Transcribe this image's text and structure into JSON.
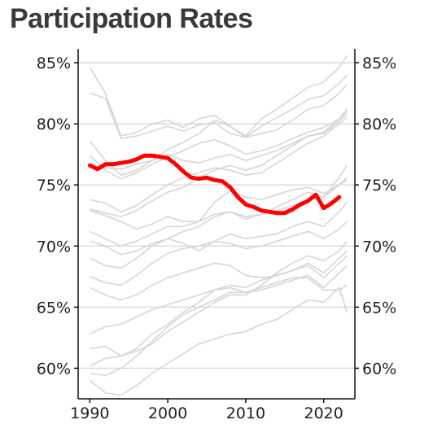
{
  "chart_data": {
    "type": "line",
    "title": "Participation Rates",
    "xlabel": "",
    "ylabel": "",
    "xlim": [
      1988.5,
      2024
    ],
    "ylim": [
      57.5,
      86
    ],
    "x_ticks": [
      "1990",
      "2000",
      "2010",
      "2020"
    ],
    "y_ticks": [
      "60%",
      "65%",
      "70%",
      "75%",
      "80%",
      "85%"
    ],
    "y_tick_values": [
      60,
      65,
      70,
      75,
      80,
      85
    ],
    "x_tick_values": [
      1990,
      2000,
      2010,
      2020
    ],
    "grid": "horizontal",
    "highlight_color": "#ff0000",
    "background_color": "#d6d6d6",
    "highlight": {
      "x": [
        1990,
        1991,
        1992,
        1993,
        1994,
        1995,
        1996,
        1997,
        1998,
        1999,
        2000,
        2001,
        2002,
        2003,
        2004,
        2005,
        2006,
        2007,
        2008,
        2009,
        2010,
        2011,
        2012,
        2013,
        2014,
        2015,
        2016,
        2017,
        2018,
        2019,
        2020,
        2021,
        2022
      ],
      "values": [
        76.6,
        76.3,
        76.7,
        76.7,
        76.8,
        76.9,
        77.1,
        77.4,
        77.4,
        77.3,
        77.2,
        76.7,
        76.1,
        75.6,
        75.5,
        75.6,
        75.4,
        75.3,
        74.8,
        74.0,
        73.4,
        73.2,
        72.9,
        72.8,
        72.7,
        72.7,
        73.0,
        73.4,
        73.7,
        74.2,
        73.1,
        73.5,
        74.0
      ]
    },
    "background_series": [
      {
        "x": [
          1990,
          1992,
          1994,
          1996,
          1998,
          2000,
          2002,
          2004,
          2006,
          2008,
          2010,
          2012,
          2014,
          2016,
          2018,
          2020,
          2022,
          2023
        ],
        "values": [
          84.6,
          82.5,
          79.0,
          79.3,
          80.0,
          80.3,
          79.7,
          80.4,
          80.7,
          79.8,
          79.0,
          80.4,
          81.2,
          82.1,
          83.0,
          83.4,
          84.6,
          85.6
        ]
      },
      {
        "x": [
          1990,
          1992,
          1994,
          1996,
          1998,
          2000,
          2002,
          2004,
          2006,
          2008,
          2010,
          2012,
          2014,
          2016,
          2018,
          2020,
          2022,
          2023
        ],
        "values": [
          82.5,
          82.1,
          78.8,
          79.0,
          79.4,
          79.8,
          79.4,
          79.9,
          80.1,
          79.2,
          78.9,
          79.8,
          80.5,
          81.2,
          82.0,
          82.3,
          83.3,
          84.0
        ]
      },
      {
        "x": [
          1990,
          1992,
          1994,
          1996,
          1998,
          2000,
          2002,
          2004,
          2006,
          2008,
          2010,
          2012,
          2014,
          2016,
          2018,
          2020,
          2022,
          2023
        ],
        "values": [
          78.6,
          77.0,
          75.8,
          76.2,
          77.0,
          77.9,
          78.5,
          79.2,
          80.3,
          79.8,
          78.9,
          79.2,
          79.5,
          80.3,
          81.2,
          81.5,
          82.5,
          83.2
        ]
      },
      {
        "x": [
          1990,
          1992,
          1994,
          1996,
          1998,
          2000,
          2002,
          2004,
          2006,
          2008,
          2010,
          2012,
          2014,
          2016,
          2018,
          2020,
          2022,
          2023
        ],
        "values": [
          77.4,
          76.2,
          75.5,
          76.0,
          76.7,
          77.3,
          77.8,
          78.4,
          78.7,
          78.2,
          77.5,
          77.8,
          78.2,
          78.8,
          79.3,
          79.7,
          80.4,
          81.0
        ]
      },
      {
        "x": [
          1990,
          1992,
          1994,
          1996,
          1998,
          2000,
          2002,
          2004,
          2006,
          2008,
          2010,
          2012,
          2014,
          2016,
          2018,
          2020,
          2022,
          2023
        ],
        "values": [
          76.6,
          76.4,
          76.3,
          76.7,
          77.0,
          77.5,
          77.0,
          76.8,
          77.2,
          77.5,
          77.0,
          77.4,
          77.8,
          78.4,
          79.0,
          79.2,
          80.2,
          80.8
        ]
      },
      {
        "x": [
          1990,
          1992,
          1994,
          1996,
          1998,
          2000,
          2002,
          2004,
          2006,
          2008,
          2010,
          2012,
          2014,
          2016,
          2018,
          2020,
          2022,
          2023
        ],
        "values": [
          73.8,
          73.5,
          72.8,
          73.3,
          74.2,
          75.0,
          75.6,
          76.0,
          76.4,
          76.2,
          75.8,
          76.0,
          76.8,
          77.6,
          78.4,
          79.0,
          80.0,
          80.5
        ]
      },
      {
        "x": [
          1990,
          1992,
          1994,
          1996,
          1998,
          2000,
          2002,
          2004,
          2006,
          2008,
          2010,
          2012,
          2014,
          2016,
          2018,
          2020,
          2022,
          2023
        ],
        "values": [
          73.0,
          72.7,
          72.4,
          72.9,
          73.7,
          74.4,
          74.8,
          75.6,
          76.2,
          76.6,
          76.2,
          76.6,
          77.4,
          78.2,
          79.0,
          79.3,
          80.4,
          81.2
        ]
      },
      {
        "x": [
          1990,
          1992,
          1994,
          1996,
          1998,
          2000,
          2002,
          2004,
          2006,
          2008,
          2010,
          2012,
          2014,
          2016,
          2018,
          2020,
          2022,
          2023
        ],
        "values": [
          72.9,
          72.5,
          72.0,
          71.4,
          71.8,
          72.4,
          72.0,
          72.0,
          72.6,
          72.8,
          72.4,
          72.6,
          72.9,
          73.3,
          73.8,
          74.0,
          75.0,
          75.6
        ]
      },
      {
        "x": [
          1990,
          1992,
          1994,
          1996,
          1998,
          2000,
          2002,
          2004,
          2006,
          2008,
          2010,
          2012,
          2014,
          2016,
          2018,
          2020,
          2022,
          2023
        ],
        "values": [
          71.2,
          70.6,
          70.0,
          70.4,
          71.0,
          71.6,
          71.6,
          72.0,
          73.6,
          74.5,
          74.0,
          73.8,
          74.2,
          74.6,
          74.8,
          74.3,
          75.0,
          75.4
        ]
      },
      {
        "x": [
          1990,
          1992,
          1994,
          1996,
          1998,
          2000,
          2002,
          2004,
          2006,
          2008,
          2010,
          2012,
          2014,
          2016,
          2018,
          2020,
          2022,
          2023
        ],
        "values": [
          70.4,
          70.0,
          69.3,
          69.6,
          70.2,
          70.6,
          70.2,
          69.6,
          70.4,
          71.0,
          70.6,
          70.8,
          71.0,
          71.6,
          72.0,
          71.6,
          72.8,
          73.6
        ]
      },
      {
        "x": [
          1990,
          1992,
          1994,
          1996,
          1998,
          2000,
          2002,
          2004,
          2006,
          2008,
          2010,
          2012,
          2014,
          2016,
          2018,
          2020,
          2022,
          2023
        ],
        "values": [
          69.0,
          68.4,
          68.2,
          69.0,
          70.0,
          70.6,
          71.2,
          71.6,
          72.4,
          72.8,
          72.2,
          72.6,
          73.2,
          73.8,
          74.4,
          74.0,
          75.6,
          76.6
        ]
      },
      {
        "x": [
          1990,
          1992,
          1994,
          1996,
          1998,
          2000,
          2002,
          2004,
          2006,
          2008,
          2010,
          2012,
          2014,
          2016,
          2018,
          2020,
          2022,
          2023
        ],
        "values": [
          67.5,
          67.0,
          66.8,
          67.6,
          68.6,
          69.4,
          69.8,
          70.0,
          70.4,
          70.2,
          69.8,
          70.0,
          70.4,
          70.8,
          71.2,
          70.6,
          71.4,
          72.0
        ]
      },
      {
        "x": [
          1990,
          1992,
          1994,
          1996,
          1998,
          2000,
          2002,
          2004,
          2006,
          2008,
          2010,
          2012,
          2014,
          2016,
          2018,
          2020,
          2022,
          2023
        ],
        "values": [
          66.6,
          66.0,
          65.6,
          66.0,
          66.8,
          67.4,
          67.8,
          68.2,
          68.6,
          68.4,
          67.6,
          67.4,
          67.6,
          68.0,
          68.4,
          67.4,
          68.6,
          69.2
        ]
      },
      {
        "x": [
          1990,
          1992,
          1994,
          1996,
          1998,
          2000,
          2002,
          2004,
          2006,
          2008,
          2010,
          2012,
          2014,
          2016,
          2018,
          2020,
          2022,
          2023
        ],
        "values": [
          62.8,
          63.4,
          63.6,
          64.2,
          64.8,
          65.2,
          65.6,
          66.0,
          66.4,
          66.6,
          66.2,
          66.4,
          66.8,
          67.2,
          67.6,
          66.6,
          67.8,
          68.4
        ]
      },
      {
        "x": [
          1990,
          1992,
          1994,
          1996,
          1998,
          2000,
          2002,
          2004,
          2006,
          2008,
          2010,
          2012,
          2014,
          2016,
          2018,
          2020,
          2022,
          2023
        ],
        "values": [
          61.6,
          61.8,
          61.0,
          61.4,
          62.0,
          63.0,
          63.8,
          64.6,
          65.4,
          66.0,
          66.0,
          66.8,
          67.8,
          68.6,
          69.2,
          68.8,
          69.6,
          70.4
        ]
      },
      {
        "x": [
          1990,
          1992,
          1994,
          1996,
          1998,
          2000,
          2002,
          2004,
          2006,
          2008,
          2010,
          2012,
          2014,
          2016,
          2018,
          2020,
          2022,
          2023
        ],
        "values": [
          60.2,
          60.8,
          61.0,
          61.6,
          62.8,
          63.6,
          64.6,
          65.4,
          66.4,
          66.8,
          66.6,
          67.2,
          67.6,
          68.0,
          68.6,
          67.8,
          69.0,
          69.6
        ]
      },
      {
        "x": [
          1990,
          1992,
          1994,
          1996,
          1998,
          2000,
          2002,
          2004,
          2006,
          2008,
          2010,
          2012,
          2014,
          2016,
          2018,
          2020,
          2022,
          2023
        ],
        "values": [
          59.6,
          59.4,
          60.0,
          61.0,
          62.2,
          63.4,
          64.4,
          65.0,
          65.6,
          66.2,
          66.2,
          66.6,
          67.0,
          67.4,
          67.4,
          66.4,
          66.4,
          66.8
        ]
      },
      {
        "x": [
          1990,
          1992,
          1994,
          1996,
          1998,
          2000,
          2002,
          2004,
          2006,
          2008,
          2010,
          2012,
          2014,
          2016,
          2018,
          2020,
          2022,
          2023
        ],
        "values": [
          59.0,
          58.0,
          57.8,
          58.6,
          59.6,
          60.4,
          61.2,
          62.0,
          62.4,
          62.8,
          63.0,
          63.6,
          64.0,
          64.8,
          65.6,
          65.4,
          66.6,
          64.6
        ]
      }
    ]
  }
}
